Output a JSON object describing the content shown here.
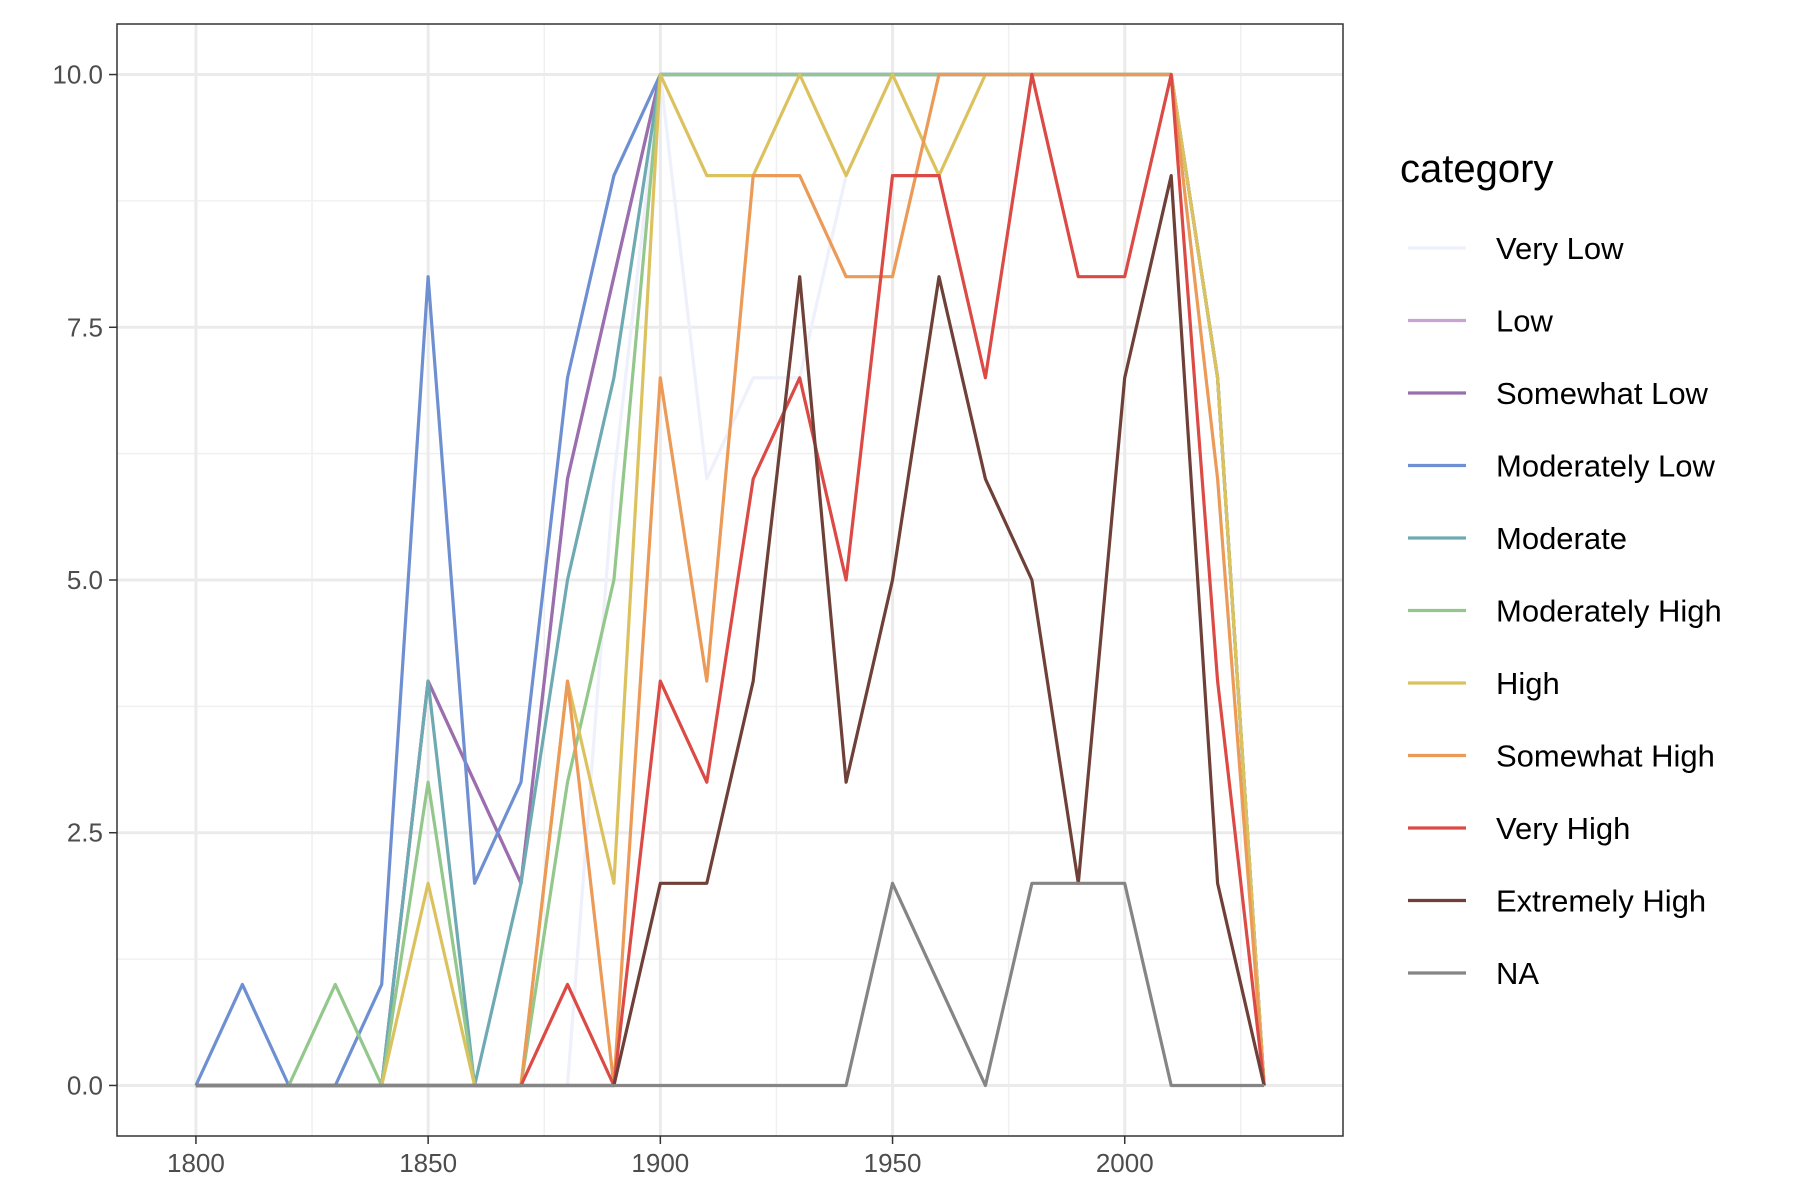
{
  "chart_data": {
    "type": "line",
    "title": "",
    "xlabel": "",
    "ylabel": "",
    "xlim": [
      1783,
      2047
    ],
    "ylim": [
      -0.5,
      10.5
    ],
    "x_ticks": [
      1800,
      1850,
      1900,
      1950,
      2000
    ],
    "x_minor_ticks": [
      1825,
      1875,
      1925,
      1975,
      2025
    ],
    "y_ticks": [
      0.0,
      2.5,
      5.0,
      7.5,
      10.0
    ],
    "y_minor_ticks": [
      1.25,
      3.75,
      6.25,
      8.75
    ],
    "x_tick_labels": [
      "1800",
      "1850",
      "1900",
      "1950",
      "2000"
    ],
    "y_tick_labels": [
      "0.0",
      "2.5",
      "5.0",
      "7.5",
      "10.0"
    ],
    "grid": true,
    "legend": {
      "title": "category",
      "position": "right"
    },
    "x": [
      1800,
      1810,
      1820,
      1830,
      1840,
      1850,
      1860,
      1870,
      1880,
      1890,
      1900,
      1910,
      1920,
      1930,
      1940,
      1950,
      1960,
      1970,
      1980,
      1990,
      2000,
      2010,
      2020,
      2030
    ],
    "series": [
      {
        "name": "Very Low",
        "color": "#EEF0FB",
        "values": [
          0,
          0,
          0,
          0,
          0,
          0,
          0,
          0,
          0,
          6,
          10,
          6,
          7,
          7,
          9,
          10,
          10,
          10,
          10,
          10,
          10,
          10,
          7,
          0
        ]
      },
      {
        "name": "Low",
        "color": "#C7A4D3",
        "values": [
          0,
          0,
          0,
          0,
          0,
          4,
          3,
          2,
          6,
          8,
          10,
          10,
          10,
          10,
          10,
          10,
          10,
          10,
          10,
          10,
          10,
          10,
          7,
          0
        ]
      },
      {
        "name": "Somewhat Low",
        "color": "#9B6FAD",
        "values": [
          0,
          0,
          0,
          0,
          0,
          4,
          3,
          2,
          6,
          8,
          10,
          10,
          10,
          10,
          10,
          10,
          10,
          10,
          10,
          10,
          10,
          10,
          7,
          0
        ]
      },
      {
        "name": "Moderately Low",
        "color": "#6E8FD1",
        "values": [
          0,
          1,
          0,
          0,
          1,
          8,
          2,
          3,
          7,
          9,
          10,
          10,
          10,
          10,
          10,
          10,
          10,
          10,
          10,
          10,
          10,
          10,
          7,
          0
        ]
      },
      {
        "name": "Moderate",
        "color": "#6FAAB3",
        "values": [
          0,
          0,
          0,
          0,
          0,
          4,
          0,
          2,
          5,
          7,
          10,
          10,
          10,
          10,
          10,
          10,
          10,
          10,
          10,
          10,
          10,
          10,
          7,
          0
        ]
      },
      {
        "name": "Moderately High",
        "color": "#93C78C",
        "values": [
          0,
          0,
          0,
          1,
          0,
          3,
          0,
          0,
          3,
          5,
          10,
          10,
          10,
          10,
          10,
          10,
          10,
          10,
          10,
          10,
          10,
          10,
          7,
          0
        ]
      },
      {
        "name": "High",
        "color": "#DCC25F",
        "values": [
          0,
          0,
          0,
          0,
          0,
          2,
          0,
          0,
          4,
          2,
          10,
          9,
          9,
          10,
          9,
          10,
          9,
          10,
          10,
          10,
          10,
          10,
          7,
          0
        ]
      },
      {
        "name": "Somewhat High",
        "color": "#EB9A57",
        "values": [
          0,
          0,
          0,
          0,
          0,
          0,
          0,
          0,
          4,
          0,
          7,
          4,
          9,
          9,
          8,
          8,
          10,
          10,
          10,
          10,
          10,
          10,
          6,
          0
        ]
      },
      {
        "name": "Very High",
        "color": "#DC4A45",
        "values": [
          0,
          0,
          0,
          0,
          0,
          0,
          0,
          0,
          1,
          0,
          4,
          3,
          6,
          7,
          5,
          9,
          9,
          7,
          10,
          8,
          8,
          10,
          4,
          0
        ]
      },
      {
        "name": "Extremely High",
        "color": "#6E4038",
        "values": [
          0,
          0,
          0,
          0,
          0,
          0,
          0,
          0,
          0,
          0,
          2,
          2,
          4,
          8,
          3,
          5,
          8,
          6,
          5,
          2,
          7,
          9,
          2,
          0
        ]
      },
      {
        "name": "NA",
        "color": "#858585",
        "values": [
          0,
          0,
          0,
          0,
          0,
          0,
          0,
          0,
          0,
          0,
          0,
          0,
          0,
          0,
          0,
          2,
          1,
          0,
          2,
          2,
          2,
          0,
          0,
          0
        ]
      }
    ]
  }
}
